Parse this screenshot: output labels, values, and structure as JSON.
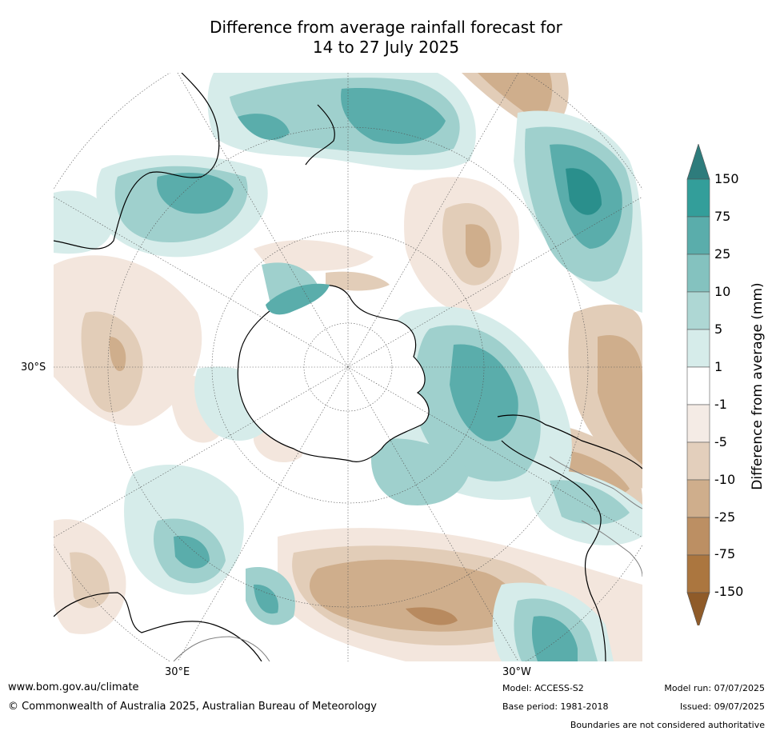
{
  "title": {
    "line1": "Difference from average rainfall forecast for",
    "line2": "14 to 27 July 2025"
  },
  "map": {
    "projection": "south-polar",
    "lat_label_west": "30°S",
    "lon_label_left": "30°E",
    "lon_label_right": "30°W",
    "palette": {
      "wet_strong": "#2a8f8c",
      "wet_mid": "#5aadab",
      "wet_light": "#9fd0cd",
      "wet_faint": "#d6ecea",
      "neutral": "#ffffff",
      "dry_faint": "#f3e6dd",
      "dry_light": "#e2cdb8",
      "dry_mid": "#cfae8c",
      "dry_strong": "#b88a5f",
      "coast": "#000000",
      "boundary": "#808080"
    }
  },
  "colorbar": {
    "title": "Difference from average (mm)",
    "ticks": [
      "150",
      "75",
      "25",
      "10",
      "5",
      "1",
      "-1",
      "-5",
      "-10",
      "-25",
      "-75",
      "-150"
    ],
    "colors_top_to_bottom": [
      "#2e7c7c",
      "#339e9a",
      "#5aadab",
      "#84c2bf",
      "#aed7d4",
      "#d6ecea",
      "#ffffff",
      "#f4ebe5",
      "#e3cfbc",
      "#cfae8c",
      "#bc8f63",
      "#ab763f",
      "#8f5b29"
    ]
  },
  "footer": {
    "website": "www.bom.gov.au/climate",
    "copyright": "© Commonwealth of Australia 2025, Australian Bureau of Meteorology",
    "model": "Model: ACCESS-S2",
    "base_period": "Base period: 1981-2018",
    "model_run": "Model run: 07/07/2025",
    "issued": "Issued: 09/07/2025",
    "disclaimer": "Boundaries are not considered authoritative"
  }
}
